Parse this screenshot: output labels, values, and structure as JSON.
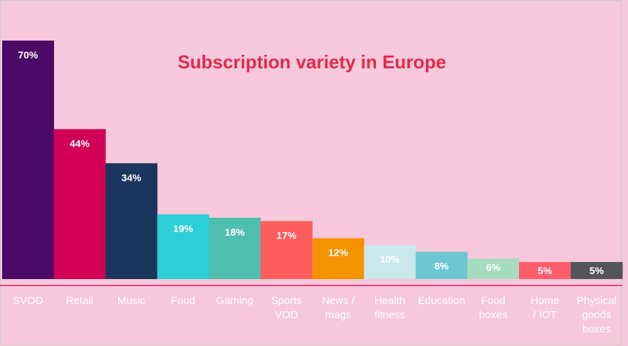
{
  "chart_data": {
    "type": "bar",
    "title": "Subscription variety in Europe",
    "xlabel": "",
    "ylabel": "",
    "ylim": [
      0,
      70
    ],
    "grid": false,
    "categories": [
      [
        "SVOD"
      ],
      [
        "Retail"
      ],
      [
        "Music"
      ],
      [
        "Food"
      ],
      [
        "Gaming"
      ],
      [
        "Sports",
        "VOD"
      ],
      [
        "News /",
        "mags"
      ],
      [
        "Health",
        "fitness"
      ],
      [
        "Education"
      ],
      [
        "Food",
        "boxes"
      ],
      [
        "Home",
        "/ IOT"
      ],
      [
        "Physical",
        "goods",
        "boxes"
      ]
    ],
    "values": [
      70,
      44,
      34,
      19,
      18,
      17,
      12,
      10,
      8,
      6,
      5,
      5
    ],
    "labels": [
      "70%",
      "44%",
      "34%",
      "19%",
      "18%",
      "17%",
      "12%",
      "10%",
      "8%",
      "6%",
      "5%",
      "5%"
    ],
    "colors": [
      "#4a0a66",
      "#d10056",
      "#1b365d",
      "#2ecfd6",
      "#4fbdb0",
      "#ff5c5c",
      "#f59200",
      "#c9e8ea",
      "#6bc6d2",
      "#a7dcc0",
      "#ff5c6c",
      "#535558"
    ],
    "label_colors": [
      "#ffffff",
      "#ffffff",
      "#ffffff",
      "#ffffff",
      "#ffffff",
      "#ffffff",
      "#ffffff",
      "#ffffff",
      "#ffffff",
      "#ffffff",
      "#ffffff",
      "#ffffff"
    ]
  },
  "theme": {
    "background": "#f5c8db",
    "title_color": "#e4284e",
    "axis_line_color": "#d81b60",
    "frame_color": "#c9c9c9"
  }
}
